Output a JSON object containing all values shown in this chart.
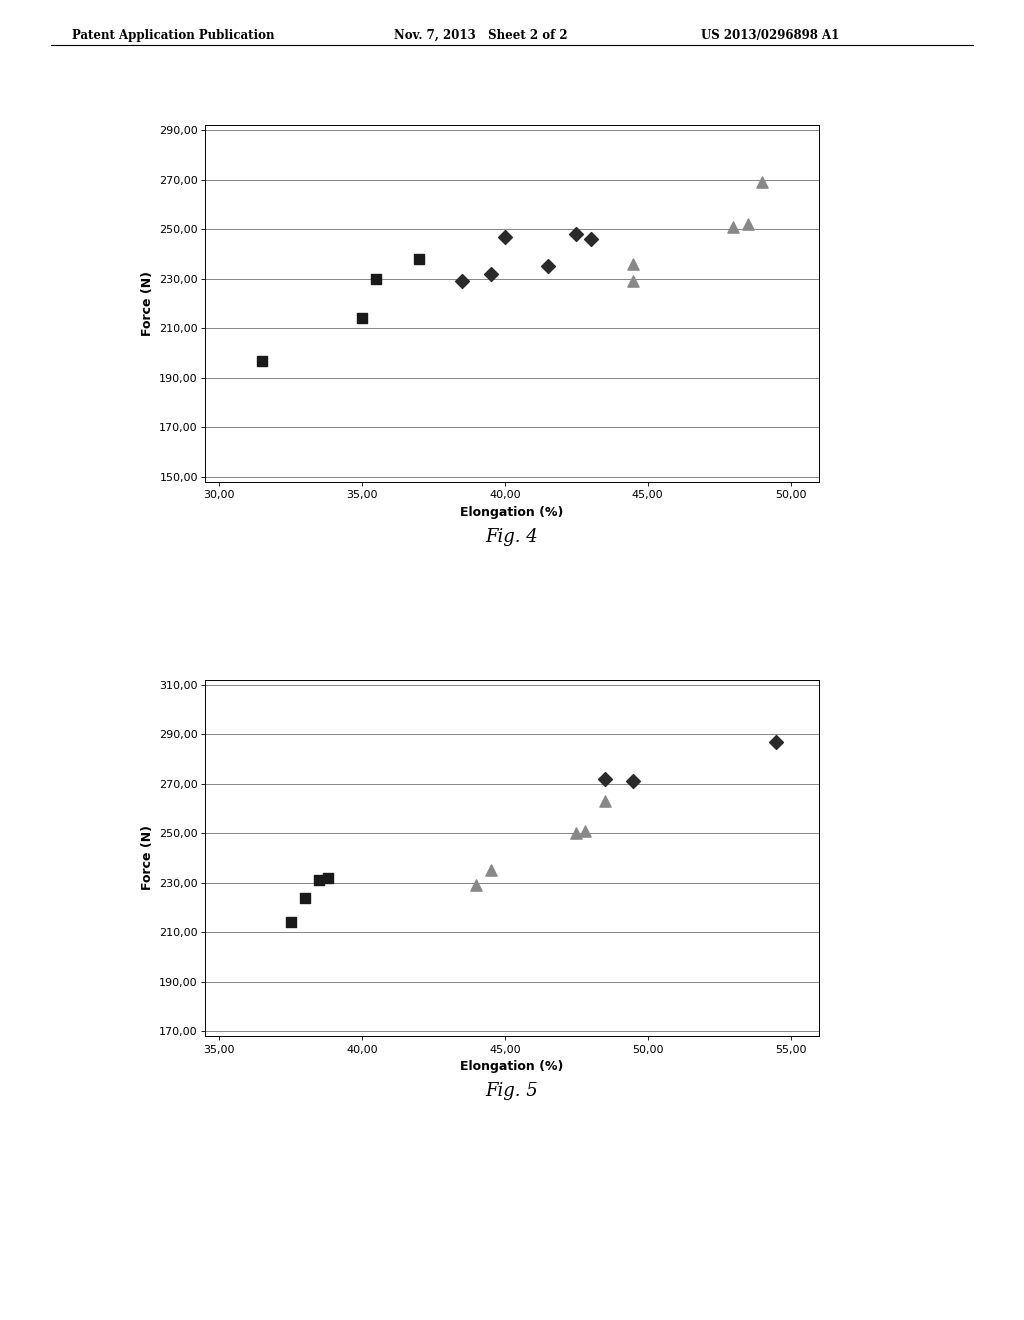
{
  "fig4": {
    "squares": {
      "x": [
        31.5,
        35.0,
        35.5,
        37.0
      ],
      "y": [
        197,
        214,
        230,
        238
      ]
    },
    "diamonds": {
      "x": [
        38.5,
        39.5,
        40.0,
        41.5,
        42.5,
        43.0
      ],
      "y": [
        229,
        232,
        247,
        235,
        248,
        246
      ]
    },
    "triangles": {
      "x": [
        44.5,
        44.5,
        48.0,
        48.5,
        49.0
      ],
      "y": [
        236,
        229,
        251,
        252,
        269
      ]
    },
    "xlabel": "Elongation (%)",
    "ylabel": "Force (N)",
    "xlim": [
      29.5,
      51.0
    ],
    "ylim": [
      148,
      292
    ],
    "xticks": [
      30.0,
      35.0,
      40.0,
      45.0,
      50.0
    ],
    "yticks": [
      150.0,
      170.0,
      190.0,
      210.0,
      230.0,
      250.0,
      270.0,
      290.0
    ],
    "fig_label": "Fig. 4"
  },
  "fig5": {
    "squares": {
      "x": [
        37.5,
        38.0,
        38.5,
        38.8
      ],
      "y": [
        214,
        224,
        231,
        232
      ]
    },
    "diamonds": {
      "x": [
        48.5,
        49.5,
        54.5
      ],
      "y": [
        272,
        271,
        287
      ]
    },
    "triangles": {
      "x": [
        44.0,
        44.5,
        47.5,
        47.8,
        48.5
      ],
      "y": [
        229,
        235,
        250,
        251,
        263
      ]
    },
    "xlabel": "Elongation (%)",
    "ylabel": "Force (N)",
    "xlim": [
      34.5,
      56.0
    ],
    "ylim": [
      168,
      312
    ],
    "xticks": [
      35.0,
      40.0,
      45.0,
      50.0,
      55.0
    ],
    "yticks": [
      170.0,
      190.0,
      210.0,
      230.0,
      250.0,
      270.0,
      290.0,
      310.0
    ],
    "fig_label": "Fig. 5"
  },
  "square_color": "#1a1a1a",
  "diamond_color": "#2a2a2a",
  "triangle_color": "#888888",
  "background": "#ffffff",
  "header_left": "Patent Application Publication",
  "header_mid": "Nov. 7, 2013   Sheet 2 of 2",
  "header_right": "US 2013/0296898 A1"
}
